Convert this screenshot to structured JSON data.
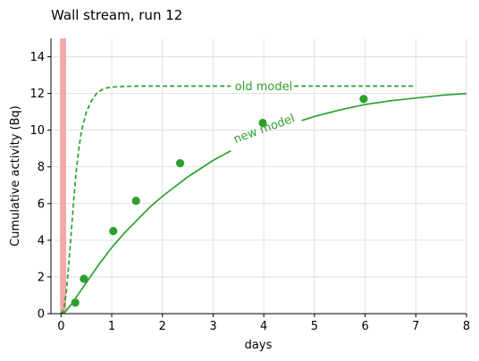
{
  "chart_data": {
    "type": "line",
    "title": "Wall stream, run 12",
    "xlabel": "days",
    "ylabel": "Cumulative activity (Bq)",
    "xlim": [
      -0.2,
      8
    ],
    "ylim": [
      0,
      15
    ],
    "xticks": [
      0,
      1,
      2,
      3,
      4,
      5,
      6,
      7,
      8
    ],
    "yticks": [
      0,
      2,
      4,
      6,
      8,
      10,
      12,
      14
    ],
    "grid": true,
    "colors": {
      "series": "#2ca02c",
      "band": "#f4a9a9",
      "grid": "#d9d9d9"
    },
    "shaded_band": {
      "x_from": -0.02,
      "x_to": 0.1
    },
    "series": [
      {
        "name": "old model",
        "style": "dashed",
        "x": [
          0.0,
          0.05,
          0.1,
          0.15,
          0.2,
          0.25,
          0.3,
          0.35,
          0.4,
          0.5,
          0.6,
          0.7,
          0.8,
          0.9,
          1.0,
          1.2,
          1.5,
          2.0,
          3.0,
          4.0,
          5.0,
          6.0,
          7.0
        ],
        "values": [
          0.0,
          0.2,
          1.1,
          2.6,
          4.4,
          6.2,
          7.8,
          9.0,
          9.9,
          11.0,
          11.6,
          12.0,
          12.2,
          12.3,
          12.35,
          12.38,
          12.4,
          12.4,
          12.4,
          12.4,
          12.4,
          12.4,
          12.4
        ]
      },
      {
        "name": "new model",
        "style": "solid",
        "x": [
          0.0,
          0.05,
          0.1,
          0.2,
          0.3,
          0.4,
          0.5,
          0.75,
          1.0,
          1.25,
          1.5,
          1.75,
          2.0,
          2.5,
          3.0,
          3.5,
          4.0,
          4.5,
          5.0,
          5.5,
          6.0,
          6.5,
          7.0,
          7.5,
          8.0
        ],
        "values": [
          0.0,
          0.05,
          0.15,
          0.5,
          0.9,
          1.3,
          1.7,
          2.7,
          3.6,
          4.4,
          5.1,
          5.8,
          6.4,
          7.45,
          8.35,
          9.1,
          9.75,
          10.3,
          10.75,
          11.1,
          11.4,
          11.6,
          11.75,
          11.9,
          12.0
        ]
      },
      {
        "name": "",
        "style": "markers",
        "x": [
          0.28,
          0.45,
          1.03,
          1.48,
          2.35,
          3.98,
          5.97
        ],
        "values": [
          0.6,
          1.9,
          4.5,
          6.15,
          8.2,
          10.4,
          11.7
        ]
      }
    ]
  }
}
